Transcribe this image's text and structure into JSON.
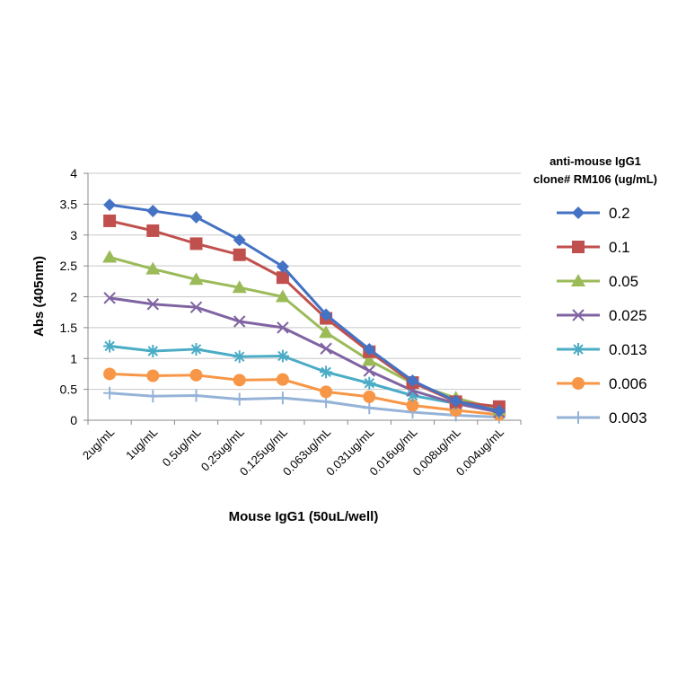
{
  "chart_data": {
    "type": "line",
    "xlabel": "Mouse IgG1 (50uL/well)",
    "ylabel": "Abs (405nm)",
    "categories": [
      "2ug/mL",
      "1ug/mL",
      "0.5ug/mL",
      "0.25ug/mL",
      "0.125ug/mL",
      "0.063ug/mL",
      "0.031ug/mL",
      "0.016ug/mL",
      "0.008ug/mL",
      "0.004ug/mL"
    ],
    "ylim": [
      0,
      4
    ],
    "yticks": [
      "0",
      "0.5",
      "1",
      "1.5",
      "2",
      "2.5",
      "3",
      "3.5",
      "4"
    ],
    "grid": true,
    "legend": {
      "title_line1": "anti-mouse IgG1",
      "title_line2": "clone# RM106 (ug/mL)",
      "placement": "right"
    },
    "series": [
      {
        "name": "0.2",
        "color": "#4472C4",
        "marker": "diamond",
        "values": [
          3.49,
          3.39,
          3.29,
          2.92,
          2.49,
          1.71,
          1.15,
          0.64,
          0.31,
          0.15
        ]
      },
      {
        "name": "0.1",
        "color": "#C0504D",
        "marker": "square",
        "values": [
          3.23,
          3.07,
          2.86,
          2.68,
          2.31,
          1.65,
          1.11,
          0.61,
          0.3,
          0.22
        ]
      },
      {
        "name": "0.05",
        "color": "#9BBB59",
        "marker": "triangle",
        "values": [
          2.64,
          2.45,
          2.28,
          2.15,
          2.0,
          1.42,
          0.97,
          0.6,
          0.36,
          0.17
        ]
      },
      {
        "name": "0.025",
        "color": "#8064A2",
        "marker": "x",
        "values": [
          1.98,
          1.88,
          1.83,
          1.6,
          1.5,
          1.16,
          0.8,
          0.48,
          0.27,
          0.13
        ]
      },
      {
        "name": "0.013",
        "color": "#4BACC6",
        "marker": "star",
        "values": [
          1.2,
          1.12,
          1.15,
          1.03,
          1.04,
          0.78,
          0.6,
          0.4,
          0.27,
          0.13
        ]
      },
      {
        "name": "0.006",
        "color": "#F79646",
        "marker": "circle",
        "values": [
          0.75,
          0.72,
          0.73,
          0.65,
          0.66,
          0.46,
          0.38,
          0.24,
          0.16,
          0.09
        ]
      },
      {
        "name": "0.003",
        "color": "#95B3D7",
        "marker": "plus",
        "values": [
          0.44,
          0.39,
          0.4,
          0.34,
          0.36,
          0.3,
          0.2,
          0.13,
          0.08,
          0.05
        ]
      }
    ]
  }
}
